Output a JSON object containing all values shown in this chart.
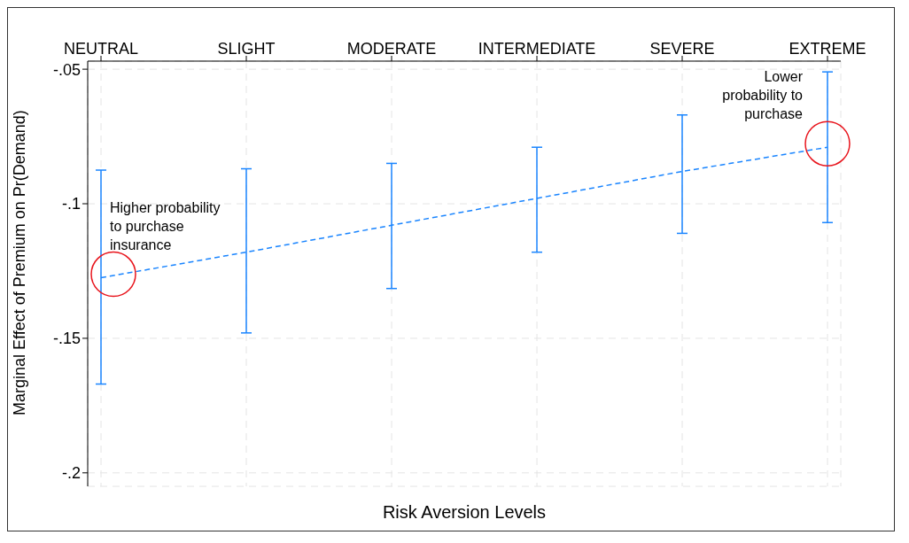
{
  "chart_data": {
    "type": "line",
    "xlabel": "Risk Aversion Levels",
    "ylabel": "Marginal Effect of Premium on Pr(Demand)",
    "categories": [
      "NEUTRAL",
      "SLIGHT",
      "MODERATE",
      "INTERMEDIATE",
      "SEVERE",
      "EXTREME"
    ],
    "series": [
      {
        "color": "#1a85ff",
        "values": [
          -0.1275,
          -0.118,
          -0.108,
          -0.098,
          -0.088,
          -0.079
        ],
        "errors": [
          [
            -0.167,
            -0.0875
          ],
          [
            -0.148,
            -0.087
          ],
          [
            -0.1315,
            -0.085
          ],
          [
            -0.118,
            -0.079
          ],
          [
            -0.111,
            -0.067
          ],
          [
            -0.107,
            -0.051
          ]
        ]
      }
    ],
    "ylim": [
      -0.205,
      -0.047
    ],
    "yticks": [
      {
        "value": -0.2,
        "label": "-.2"
      },
      {
        "value": -0.15,
        "label": "-.15"
      },
      {
        "value": -0.1,
        "label": "-.1"
      },
      {
        "value": -0.05,
        "label": "-.05"
      }
    ],
    "grid": true,
    "line_style": "dashed",
    "marker": "none",
    "annotations": [
      {
        "text": "Higher probability to purchase insurance",
        "x": "NEUTRAL",
        "y": -0.1275
      },
      {
        "text": "Lower probability to purchase",
        "x": "EXTREME",
        "y": -0.079
      }
    ]
  }
}
